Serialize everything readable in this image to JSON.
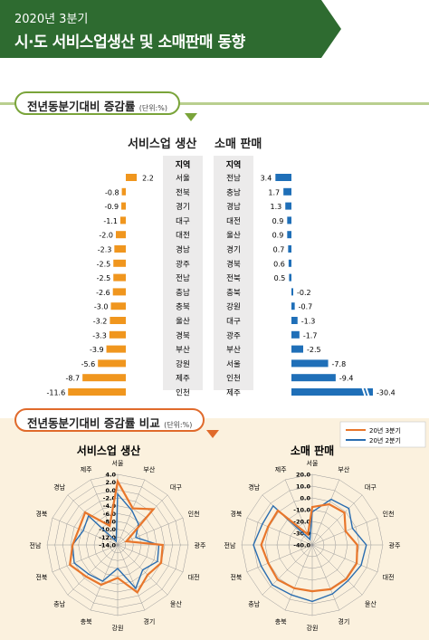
{
  "header": {
    "subtitle": "2020년 3분기",
    "title": "시·도 서비스업생산 및 소매판매 동향"
  },
  "section1": {
    "label": "전년동분기대비 증감률",
    "unit": "(단위:%)"
  },
  "section2": {
    "label": "전년동분기대비 증감률 비교",
    "unit": "(단위:%)"
  },
  "colors": {
    "service": "#f0961e",
    "retail": "#1f6fb8",
    "radar_q3": "#e8762b",
    "radar_q2": "#2a6db0",
    "banner": "#2e6b30"
  },
  "chart_data": [
    {
      "type": "bar",
      "title": "서비스업 생산",
      "region_header": "지역",
      "categories": [
        "서울",
        "전북",
        "경기",
        "대구",
        "대전",
        "경남",
        "광주",
        "전남",
        "충남",
        "충북",
        "울산",
        "경북",
        "부산",
        "강원",
        "제주",
        "인천"
      ],
      "values": [
        2.2,
        -0.8,
        -0.9,
        -1.1,
        -2.0,
        -2.3,
        -2.5,
        -2.5,
        -2.6,
        -3.0,
        -3.2,
        -3.3,
        -3.9,
        -5.6,
        -8.7,
        -11.6
      ]
    },
    {
      "type": "bar",
      "title": "소매 판매",
      "region_header": "지역",
      "categories": [
        "전남",
        "충남",
        "경남",
        "대전",
        "울산",
        "경기",
        "경북",
        "전북",
        "충북",
        "강원",
        "대구",
        "광주",
        "부산",
        "서울",
        "인천",
        "제주"
      ],
      "values": [
        3.4,
        1.7,
        1.3,
        0.9,
        0.9,
        0.7,
        0.6,
        0.5,
        -0.2,
        -0.7,
        -1.3,
        -1.7,
        -2.5,
        -7.8,
        -9.4,
        -30.4
      ]
    },
    {
      "type": "radar",
      "title": "서비스업 생산",
      "categories": [
        "서울",
        "부산",
        "대구",
        "인천",
        "광주",
        "대전",
        "울산",
        "경기",
        "강원",
        "충북",
        "충남",
        "전북",
        "전남",
        "경북",
        "경남",
        "제주"
      ],
      "rlim": [
        -14.0,
        4.0
      ],
      "ticks": [
        "4.0",
        "2.0",
        "0.0",
        "-2.0",
        "-4.0",
        "-6.0",
        "-8.0",
        "-10.0",
        "-12.0",
        "-14.0"
      ],
      "legend": [
        "20년 3분기",
        "20년 2분기"
      ],
      "series": [
        {
          "name": "20년 3분기",
          "values": [
            2.2,
            -3.9,
            -1.1,
            -11.6,
            -2.5,
            -2.0,
            -3.2,
            -0.9,
            -5.6,
            -3.0,
            -2.6,
            -0.8,
            -2.5,
            -3.3,
            -2.3,
            -8.7
          ]
        },
        {
          "name": "20년 2분기",
          "values": [
            -1.0,
            -4.5,
            -6.5,
            -9.0,
            -3.5,
            -3.0,
            -5.0,
            -2.0,
            -8.0,
            -4.0,
            -3.5,
            -2.0,
            -2.5,
            -4.5,
            -3.5,
            -13.0
          ]
        }
      ]
    },
    {
      "type": "radar",
      "title": "소매 판매",
      "categories": [
        "서울",
        "부산",
        "대구",
        "인천",
        "광주",
        "대전",
        "울산",
        "경기",
        "강원",
        "충북",
        "충남",
        "전북",
        "전남",
        "경북",
        "경남",
        "제주"
      ],
      "rlim": [
        -40.0,
        20.0
      ],
      "ticks": [
        "20.0",
        "10.0",
        "0.0",
        "-10.0",
        "-20.0",
        "-30.0",
        "-40.0"
      ],
      "legend": [
        "20년 3분기",
        "20년 2분기"
      ],
      "series": [
        {
          "name": "20년 3분기",
          "values": [
            -7.8,
            -2.5,
            -1.3,
            -9.4,
            -1.7,
            0.9,
            0.9,
            0.7,
            -0.7,
            -0.2,
            1.7,
            0.5,
            3.4,
            0.6,
            1.3,
            -30.4
          ]
        },
        {
          "name": "20년 2분기",
          "values": [
            -12.0,
            2.0,
            4.0,
            -3.0,
            6.0,
            5.0,
            3.0,
            5.0,
            8.0,
            6.0,
            8.0,
            7.0,
            10.0,
            6.0,
            7.0,
            -35.0
          ]
        }
      ]
    }
  ]
}
